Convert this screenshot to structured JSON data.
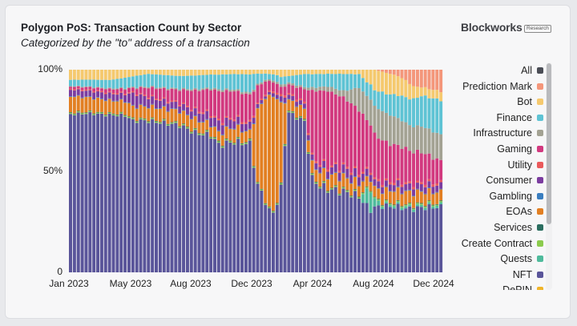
{
  "header": {
    "title": "Polygon PoS: Transaction Count by Sector",
    "subtitle": "Categorized by the \"to\" address of a transaction"
  },
  "brand": {
    "name": "Blockworks",
    "tag": "Research"
  },
  "chart_data": {
    "type": "bar",
    "stacked": true,
    "normalized": true,
    "x_ticks": [
      "Jan 2023",
      "May 2023",
      "Aug 2023",
      "Dec 2023",
      "Apr 2024",
      "Aug 2024",
      "Dec 2024"
    ],
    "y_ticks": [
      "0",
      "50%",
      "100%"
    ],
    "ylim": [
      0,
      100
    ],
    "grid": false,
    "legend_position": "right",
    "period_range": [
      "Jan 2023",
      "Dec 2024"
    ],
    "series_colors": {
      "All": "#4a4d55",
      "Prediction Mark": "#f4967a",
      "Bot": "#f5c96e",
      "Finance": "#5ec3d4",
      "Infrastructure": "#a3a293",
      "Gaming": "#d2397f",
      "Utility": "#ea5a5c",
      "Consumer": "#7b3ca0",
      "Gambling": "#3a7ec0",
      "EOAs": "#e27f22",
      "Services": "#2b6e60",
      "Create Contract": "#8ccb4d",
      "Quests": "#4fbb9c",
      "NFT": "#5a559a",
      "DePIN": "#f0b429"
    },
    "series": [
      {
        "name": "NFT",
        "anchors": [
          [
            0,
            78
          ],
          [
            5,
            80
          ],
          [
            12,
            75
          ],
          [
            20,
            72
          ],
          [
            28,
            70
          ],
          [
            32,
            62
          ],
          [
            36,
            62
          ],
          [
            38,
            52
          ],
          [
            42,
            60
          ],
          [
            46,
            55
          ],
          [
            50,
            35
          ],
          [
            52,
            30
          ],
          [
            54,
            32
          ],
          [
            56,
            75
          ],
          [
            58,
            72
          ],
          [
            60,
            70
          ],
          [
            62,
            42
          ],
          [
            64,
            40
          ],
          [
            66,
            40
          ],
          [
            70,
            38
          ],
          [
            74,
            34
          ],
          [
            78,
            32
          ],
          [
            82,
            32
          ],
          [
            86,
            30
          ],
          [
            90,
            30
          ],
          [
            95,
            30
          ]
        ]
      },
      {
        "name": "Quests",
        "anchors": [
          [
            0,
            0
          ],
          [
            60,
            0
          ],
          [
            74,
            0
          ],
          [
            75,
            4
          ],
          [
            76,
            8
          ],
          [
            77,
            10
          ],
          [
            78,
            4
          ],
          [
            80,
            1
          ],
          [
            95,
            1
          ]
        ]
      },
      {
        "name": "Create Contract",
        "anchors": [
          [
            0,
            0.5
          ],
          [
            95,
            0.5
          ]
        ]
      },
      {
        "name": "Services",
        "anchors": [
          [
            0,
            0.3
          ],
          [
            95,
            0.3
          ]
        ]
      },
      {
        "name": "EOAs",
        "anchors": [
          [
            0,
            8
          ],
          [
            12,
            6
          ],
          [
            28,
            6
          ],
          [
            38,
            4
          ],
          [
            42,
            6
          ],
          [
            46,
            4
          ],
          [
            48,
            36
          ],
          [
            50,
            52
          ],
          [
            52,
            60
          ],
          [
            54,
            30
          ],
          [
            56,
            5
          ],
          [
            60,
            5
          ],
          [
            64,
            6
          ],
          [
            70,
            6
          ],
          [
            74,
            5
          ],
          [
            78,
            5
          ],
          [
            82,
            6
          ],
          [
            86,
            6
          ],
          [
            95,
            5
          ]
        ]
      },
      {
        "name": "Gambling",
        "anchors": [
          [
            0,
            0.3
          ],
          [
            95,
            0.3
          ]
        ]
      },
      {
        "name": "Consumer",
        "anchors": [
          [
            0,
            3
          ],
          [
            14,
            3
          ],
          [
            16,
            6
          ],
          [
            20,
            4
          ],
          [
            28,
            3
          ],
          [
            38,
            4
          ],
          [
            46,
            3
          ],
          [
            50,
            1
          ],
          [
            54,
            2
          ],
          [
            60,
            2
          ],
          [
            70,
            4
          ],
          [
            80,
            3
          ],
          [
            90,
            3
          ],
          [
            95,
            3
          ]
        ]
      },
      {
        "name": "Utility",
        "anchors": [
          [
            0,
            0.5
          ],
          [
            80,
            1
          ],
          [
            95,
            1
          ]
        ]
      },
      {
        "name": "Gaming",
        "anchors": [
          [
            0,
            1
          ],
          [
            16,
            2
          ],
          [
            20,
            4
          ],
          [
            28,
            6
          ],
          [
            38,
            12
          ],
          [
            46,
            12
          ],
          [
            50,
            6
          ],
          [
            54,
            3
          ],
          [
            56,
            4
          ],
          [
            60,
            6
          ],
          [
            62,
            30
          ],
          [
            66,
            36
          ],
          [
            70,
            32
          ],
          [
            74,
            28
          ],
          [
            78,
            22
          ],
          [
            82,
            18
          ],
          [
            86,
            16
          ],
          [
            90,
            14
          ],
          [
            95,
            10
          ]
        ]
      },
      {
        "name": "Infrastructure",
        "anchors": [
          [
            0,
            0.3
          ],
          [
            60,
            1
          ],
          [
            70,
            3
          ],
          [
            74,
            10
          ],
          [
            78,
            14
          ],
          [
            82,
            14
          ],
          [
            86,
            12
          ],
          [
            90,
            12
          ],
          [
            95,
            12
          ]
        ]
      },
      {
        "name": "Finance",
        "anchors": [
          [
            0,
            3
          ],
          [
            10,
            4
          ],
          [
            20,
            6
          ],
          [
            28,
            6
          ],
          [
            38,
            6
          ],
          [
            46,
            8
          ],
          [
            50,
            3
          ],
          [
            56,
            3
          ],
          [
            60,
            6
          ],
          [
            66,
            6
          ],
          [
            70,
            8
          ],
          [
            74,
            6
          ],
          [
            78,
            8
          ],
          [
            82,
            10
          ],
          [
            86,
            12
          ],
          [
            90,
            14
          ],
          [
            95,
            16
          ]
        ]
      },
      {
        "name": "Bot",
        "anchors": [
          [
            0,
            5
          ],
          [
            10,
            5
          ],
          [
            20,
            2
          ],
          [
            28,
            3
          ],
          [
            38,
            2
          ],
          [
            46,
            2
          ],
          [
            50,
            2
          ],
          [
            56,
            3
          ],
          [
            60,
            2
          ],
          [
            66,
            2
          ],
          [
            70,
            2
          ],
          [
            74,
            2
          ],
          [
            78,
            10
          ],
          [
            82,
            10
          ],
          [
            86,
            8
          ],
          [
            88,
            6
          ],
          [
            90,
            4
          ],
          [
            95,
            4
          ]
        ]
      },
      {
        "name": "Prediction Mark",
        "anchors": [
          [
            0,
            0
          ],
          [
            78,
            0
          ],
          [
            80,
            1
          ],
          [
            84,
            3
          ],
          [
            86,
            5
          ],
          [
            88,
            8
          ],
          [
            90,
            8
          ],
          [
            95,
            10
          ]
        ]
      }
    ]
  },
  "legend": {
    "items": [
      {
        "label": "All",
        "key": "All"
      },
      {
        "label": "Prediction Mark",
        "key": "Prediction Mark"
      },
      {
        "label": "Bot",
        "key": "Bot"
      },
      {
        "label": "Finance",
        "key": "Finance"
      },
      {
        "label": "Infrastructure",
        "key": "Infrastructure"
      },
      {
        "label": "Gaming",
        "key": "Gaming"
      },
      {
        "label": "Utility",
        "key": "Utility"
      },
      {
        "label": "Consumer",
        "key": "Consumer"
      },
      {
        "label": "Gambling",
        "key": "Gambling"
      },
      {
        "label": "EOAs",
        "key": "EOAs"
      },
      {
        "label": "Services",
        "key": "Services"
      },
      {
        "label": "Create Contract",
        "key": "Create Contract"
      },
      {
        "label": "Quests",
        "key": "Quests"
      },
      {
        "label": "NFT",
        "key": "NFT"
      },
      {
        "label": "DePIN",
        "key": "DePIN"
      }
    ]
  }
}
